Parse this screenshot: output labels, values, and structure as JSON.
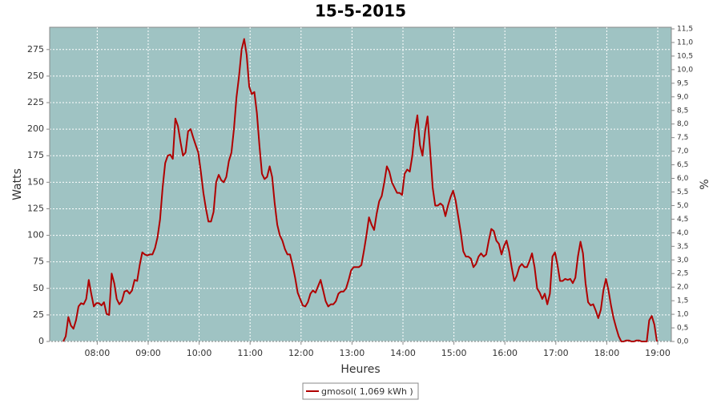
{
  "chart_data": {
    "type": "line",
    "title": "15-5-2015",
    "x_label": "Heures",
    "y_label": "Watts",
    "y2_label": "%",
    "x": [
      440,
      443,
      446,
      449,
      452,
      455,
      458,
      461,
      464,
      467,
      470,
      473,
      476,
      479,
      482,
      485,
      488,
      491,
      494,
      497,
      500,
      503,
      506,
      509,
      512,
      515,
      518,
      521,
      524,
      527,
      530,
      533,
      536,
      539,
      542,
      545,
      548,
      551,
      554,
      557,
      560,
      563,
      566,
      569,
      572,
      575,
      578,
      581,
      584,
      587,
      590,
      593,
      596,
      599,
      602,
      605,
      608,
      611,
      614,
      617,
      620,
      623,
      626,
      629,
      632,
      635,
      638,
      641,
      644,
      647,
      650,
      653,
      656,
      659,
      662,
      665,
      668,
      671,
      674,
      677,
      680,
      683,
      686,
      689,
      692,
      695,
      698,
      701,
      704,
      707,
      710,
      713,
      716,
      719,
      722,
      725,
      728,
      731,
      734,
      737,
      740,
      743,
      746,
      749,
      752,
      755,
      758,
      761,
      764,
      767,
      770,
      773,
      776,
      779,
      782,
      785,
      788,
      791,
      794,
      797,
      800,
      803,
      806,
      809,
      812,
      815,
      818,
      821,
      824,
      827,
      830,
      833,
      836,
      839,
      842,
      845,
      848,
      851,
      854,
      857,
      860,
      863,
      866,
      869,
      872,
      875,
      878,
      881,
      884,
      887,
      890,
      893,
      896,
      899,
      902,
      905,
      908,
      911,
      914,
      917,
      920,
      923,
      926,
      929,
      932,
      935,
      938,
      941,
      944,
      947,
      950,
      953,
      956,
      959,
      962,
      965,
      968,
      971,
      974,
      977,
      980,
      983,
      986,
      989,
      992,
      995,
      998,
      1001,
      1004,
      1007,
      1010,
      1013,
      1016,
      1019,
      1022,
      1025,
      1028,
      1031,
      1034,
      1037,
      1040,
      1043,
      1046,
      1049,
      1052,
      1055,
      1058,
      1061,
      1064,
      1067,
      1070,
      1073,
      1076,
      1079,
      1082,
      1085,
      1088,
      1091,
      1094,
      1097,
      1100,
      1103,
      1106,
      1109,
      1112,
      1115,
      1118,
      1121,
      1124,
      1127,
      1130,
      1133,
      1136,
      1139
    ],
    "series": [
      {
        "name": "gmosol( 1,069 kWh )",
        "color": "#b00000",
        "values": [
          0,
          5,
          23,
          15,
          12,
          20,
          33,
          36,
          35,
          40,
          58,
          45,
          33,
          36,
          36,
          34,
          37,
          26,
          25,
          64,
          55,
          40,
          35,
          38,
          47,
          48,
          45,
          48,
          58,
          57,
          72,
          84,
          82,
          81,
          82,
          82,
          88,
          98,
          115,
          145,
          168,
          175,
          176,
          172,
          210,
          203,
          188,
          175,
          178,
          198,
          200,
          192,
          185,
          178,
          160,
          140,
          125,
          113,
          113,
          122,
          150,
          157,
          152,
          150,
          155,
          170,
          178,
          200,
          230,
          250,
          275,
          285,
          270,
          240,
          233,
          235,
          215,
          185,
          158,
          153,
          155,
          165,
          155,
          130,
          110,
          100,
          95,
          87,
          82,
          82,
          72,
          60,
          46,
          40,
          34,
          33,
          37,
          45,
          48,
          46,
          52,
          58,
          48,
          38,
          33,
          35,
          35,
          38,
          45,
          47,
          47,
          50,
          58,
          67,
          70,
          70,
          70,
          72,
          85,
          100,
          117,
          110,
          105,
          120,
          132,
          137,
          150,
          165,
          160,
          150,
          145,
          140,
          140,
          138,
          158,
          162,
          160,
          175,
          198,
          213,
          185,
          175,
          198,
          212,
          180,
          145,
          128,
          128,
          130,
          128,
          118,
          128,
          136,
          142,
          133,
          118,
          103,
          85,
          80,
          80,
          78,
          70,
          73,
          80,
          83,
          80,
          82,
          95,
          106,
          104,
          95,
          92,
          82,
          90,
          95,
          85,
          70,
          57,
          62,
          70,
          73,
          70,
          70,
          76,
          83,
          70,
          50,
          46,
          40,
          45,
          35,
          45,
          80,
          84,
          72,
          57,
          57,
          59,
          58,
          59,
          55,
          60,
          80,
          94,
          83,
          55,
          37,
          34,
          35,
          29,
          22,
          30,
          48,
          59,
          48,
          34,
          22,
          13,
          5,
          0,
          0,
          1,
          1,
          0,
          0,
          1,
          1,
          0,
          0,
          0,
          20,
          24,
          16,
          0
        ]
      }
    ],
    "xlim": [
      424,
      1156
    ],
    "xticks": [
      {
        "value": 480,
        "label": "08:00"
      },
      {
        "value": 540,
        "label": "09:00"
      },
      {
        "value": 600,
        "label": "10:00"
      },
      {
        "value": 660,
        "label": "11:00"
      },
      {
        "value": 720,
        "label": "12:00"
      },
      {
        "value": 780,
        "label": "13:00"
      },
      {
        "value": 840,
        "label": "14:00"
      },
      {
        "value": 900,
        "label": "15:00"
      },
      {
        "value": 960,
        "label": "16:00"
      },
      {
        "value": 1020,
        "label": "17:00"
      },
      {
        "value": 1080,
        "label": "18:00"
      },
      {
        "value": 1140,
        "label": "19:00"
      }
    ],
    "ylim": [
      0,
      296
    ],
    "yticks": [
      0,
      25,
      50,
      75,
      100,
      125,
      150,
      175,
      200,
      225,
      250,
      275
    ],
    "y2lim": [
      0,
      11.56
    ],
    "y2ticks": [
      {
        "value": 0,
        "label": "0,0"
      },
      {
        "value": 0.5,
        "label": "0,5"
      },
      {
        "value": 1,
        "label": "1,0"
      },
      {
        "value": 1.5,
        "label": "1,5"
      },
      {
        "value": 2,
        "label": "2,0"
      },
      {
        "value": 2.5,
        "label": "2,5"
      },
      {
        "value": 3,
        "label": "3,0"
      },
      {
        "value": 3.5,
        "label": "3,5"
      },
      {
        "value": 4,
        "label": "4,0"
      },
      {
        "value": 4.5,
        "label": "4,5"
      },
      {
        "value": 5,
        "label": "5,0"
      },
      {
        "value": 5.5,
        "label": "5,5"
      },
      {
        "value": 6,
        "label": "6,0"
      },
      {
        "value": 6.5,
        "label": "6,5"
      },
      {
        "value": 7,
        "label": "7,0"
      },
      {
        "value": 7.5,
        "label": "7,5"
      },
      {
        "value": 8,
        "label": "8,0"
      },
      {
        "value": 8.5,
        "label": "8,5"
      },
      {
        "value": 9,
        "label": "9,0"
      },
      {
        "value": 9.5,
        "label": "9,5"
      },
      {
        "value": 10,
        "label": "10,0"
      },
      {
        "value": 10.5,
        "label": "10,5"
      },
      {
        "value": 11,
        "label": "11,0"
      },
      {
        "value": 11.5,
        "label": "11,5"
      }
    ],
    "grid": true,
    "plot_background": "#9fc3c3",
    "legend": "bottom"
  }
}
